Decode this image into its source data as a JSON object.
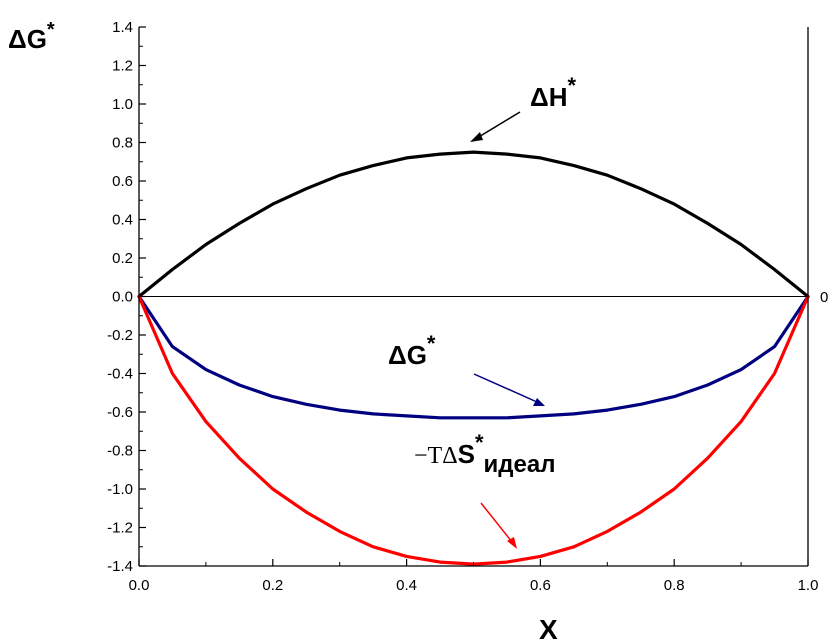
{
  "chart_data": {
    "type": "line",
    "xlabel": "X",
    "ylabel_main": "ΔG",
    "ylabel_sup": "*",
    "xlim": [
      0.0,
      1.0
    ],
    "ylim": [
      -1.4,
      1.4
    ],
    "x_ticks": [
      "0.0",
      "0.2",
      "0.4",
      "0.6",
      "0.8",
      "1.0"
    ],
    "y_ticks": [
      "1.4",
      "1.2",
      "1.0",
      "0.8",
      "0.6",
      "0.4",
      "0.2",
      "0.0",
      "-0.2",
      "-0.4",
      "-0.6",
      "-0.8",
      "-1.0",
      "-1.2",
      "-1.4"
    ],
    "right_axis_label": "0",
    "grid": false,
    "zero_line": true,
    "series": [
      {
        "color": "#000000",
        "x": [
          0,
          0.05,
          0.1,
          0.15,
          0.2,
          0.25,
          0.3,
          0.35,
          0.4,
          0.45,
          0.5,
          0.55,
          0.6,
          0.65,
          0.7,
          0.75,
          0.8,
          0.85,
          0.9,
          0.95,
          1.0
        ],
        "y": [
          0,
          0.14,
          0.27,
          0.38,
          0.48,
          0.56,
          0.63,
          0.68,
          0.72,
          0.74,
          0.75,
          0.74,
          0.72,
          0.68,
          0.63,
          0.56,
          0.48,
          0.38,
          0.27,
          0.14,
          0
        ]
      },
      {
        "color": "#000080",
        "x": [
          0,
          0.05,
          0.1,
          0.15,
          0.2,
          0.25,
          0.3,
          0.35,
          0.4,
          0.45,
          0.5,
          0.55,
          0.6,
          0.65,
          0.7,
          0.75,
          0.8,
          0.85,
          0.9,
          0.95,
          1.0
        ],
        "y": [
          0,
          -0.26,
          -0.38,
          -0.46,
          -0.52,
          -0.56,
          -0.59,
          -0.61,
          -0.62,
          -0.63,
          -0.63,
          -0.63,
          -0.62,
          -0.61,
          -0.59,
          -0.56,
          -0.52,
          -0.46,
          -0.38,
          -0.26,
          0
        ]
      },
      {
        "color": "#ff0000",
        "x": [
          0,
          0.05,
          0.1,
          0.15,
          0.2,
          0.25,
          0.3,
          0.35,
          0.4,
          0.45,
          0.5,
          0.55,
          0.6,
          0.65,
          0.7,
          0.75,
          0.8,
          0.85,
          0.9,
          0.95,
          1.0
        ],
        "y": [
          0,
          -0.4,
          -0.65,
          -0.84,
          -1.0,
          -1.12,
          -1.22,
          -1.3,
          -1.35,
          -1.38,
          -1.39,
          -1.38,
          -1.35,
          -1.3,
          -1.22,
          -1.12,
          -1.0,
          -0.84,
          -0.65,
          -0.4,
          0
        ]
      }
    ],
    "annotations": [
      {
        "main": "ΔH",
        "sup": "*",
        "color": "#000000"
      },
      {
        "main": "ΔG",
        "sup": "*",
        "color": "#000080"
      },
      {
        "prefix": "−TΔ",
        "main": "S",
        "sup": "*",
        "sub": "идеал",
        "color": "#ff0000"
      }
    ]
  }
}
